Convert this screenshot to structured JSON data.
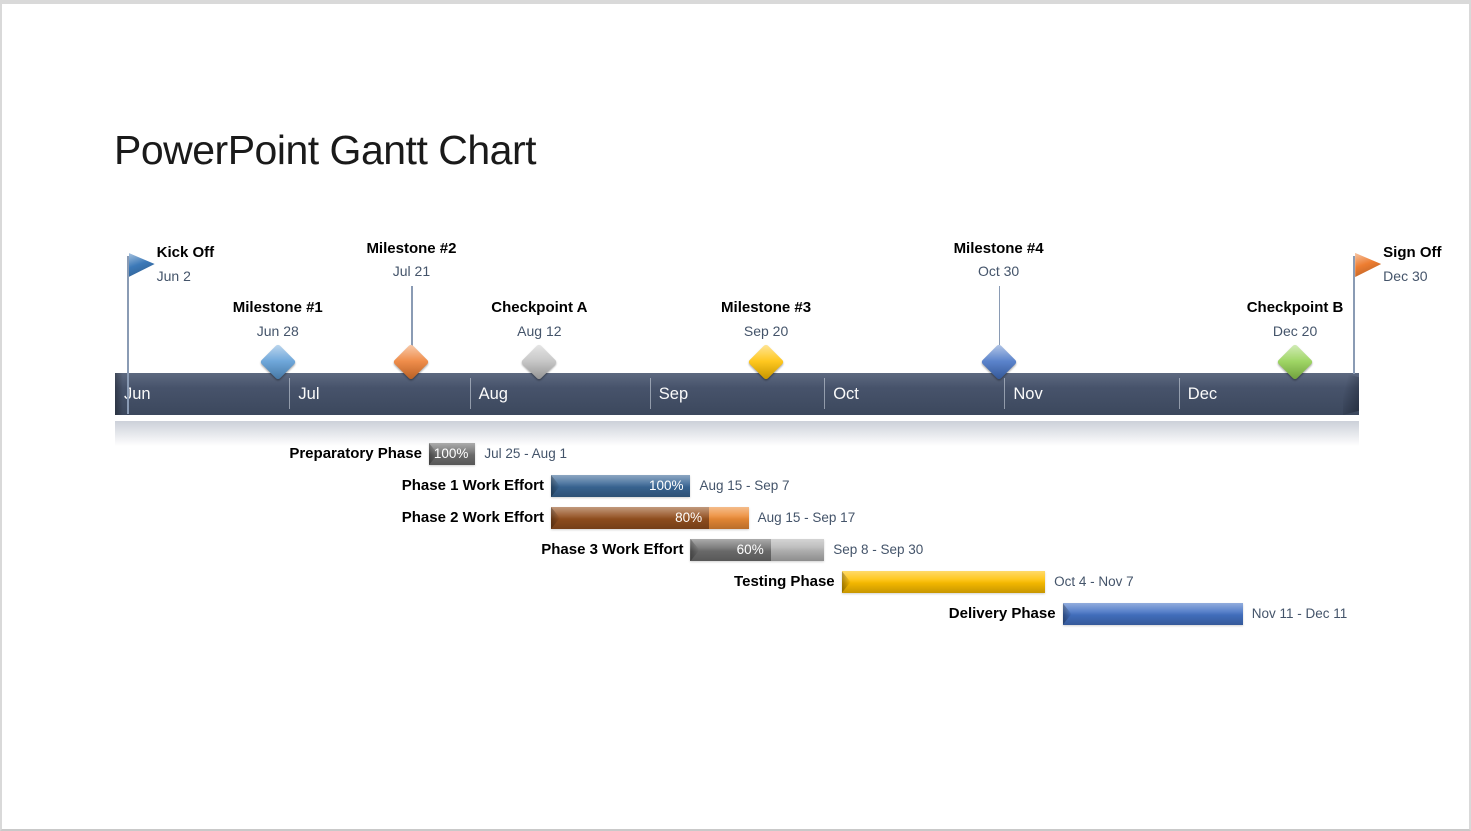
{
  "colors": {
    "slide_border": "#D9D9D9",
    "band": "#47536B",
    "band_separator": "#98A2B3",
    "month_text": "#FAFAFA",
    "date_text": "#44546A",
    "label_text": "#000000",
    "percent_text": "#FFFFFF",
    "connector": "#8A9BB4",
    "reflection": "#C3C8D2",
    "title_text": "#1A1A1A"
  },
  "chart_data": {
    "type": "bar",
    "subtype": "gantt-timeline",
    "title": "PowerPoint Gantt Chart",
    "x_axis": {
      "unit": "months",
      "start": "Jun",
      "end": "Dec",
      "grid": "month separators on band"
    },
    "legend": "none",
    "months": [
      {
        "label": "Jun",
        "days": 30
      },
      {
        "label": "Jul",
        "days": 31
      },
      {
        "label": "Aug",
        "days": 31
      },
      {
        "label": "Sep",
        "days": 30
      },
      {
        "label": "Oct",
        "days": 31
      },
      {
        "label": "Nov",
        "days": 30
      },
      {
        "label": "Dec",
        "days": 31
      }
    ],
    "milestones": [
      {
        "name": "Kick Off",
        "date": "Jun 2",
        "marker": "flag",
        "color": "#3C79B8",
        "label_position": "flag-right"
      },
      {
        "name": "Milestone #1",
        "date": "Jun 28",
        "marker": "diamond",
        "color": "#5B9BD5",
        "label_position": "low"
      },
      {
        "name": "Milestone #2",
        "date": "Jul 21",
        "marker": "diamond",
        "color": "#ED7D31",
        "label_position": "high"
      },
      {
        "name": "Checkpoint A",
        "date": "Aug 12",
        "marker": "diamond",
        "color": "#BFBFBF",
        "label_position": "low"
      },
      {
        "name": "Milestone #3",
        "date": "Sep 20",
        "marker": "diamond",
        "color": "#FFC000",
        "label_position": "low"
      },
      {
        "name": "Milestone #4",
        "date": "Oct 30",
        "marker": "diamond",
        "color": "#4472C4",
        "label_position": "high"
      },
      {
        "name": "Checkpoint B",
        "date": "Dec 20",
        "marker": "diamond",
        "color": "#92D050",
        "label_position": "low"
      },
      {
        "name": "Sign Off",
        "date": "Dec 30",
        "marker": "flag",
        "color": "#ED7D31",
        "label_position": "flag-right"
      }
    ],
    "tasks": [
      {
        "name": "Preparatory Phase",
        "dates": "Jul 25 - Aug 1",
        "percent_label": "100%",
        "color_done": "#6F6F6F",
        "color_remain": null
      },
      {
        "name": "Phase 1 Work Effort",
        "dates": "Aug 15 - Sep 7",
        "percent_label": "100%",
        "color_done": "#3A6796",
        "color_remain": null
      },
      {
        "name": "Phase 2 Work Effort",
        "dates": "Aug 15 - Sep 17",
        "percent_label": "80%",
        "color_done": "#94501F",
        "color_remain": "#ED8C37"
      },
      {
        "name": "Phase 3 Work Effort",
        "dates": "Sep 8 - Sep 30",
        "percent_label": "60%",
        "color_done": "#6F6F6F",
        "color_remain": "#B5B5B5"
      },
      {
        "name": "Testing Phase",
        "dates": "Oct 4 - Nov 7",
        "percent_label": null,
        "color_done": "#FFC000",
        "color_remain": null
      },
      {
        "name": "Delivery Phase",
        "dates": "Nov 11 - Dec 11",
        "percent_label": null,
        "color_done": "#4472C4",
        "color_remain": null
      }
    ]
  }
}
